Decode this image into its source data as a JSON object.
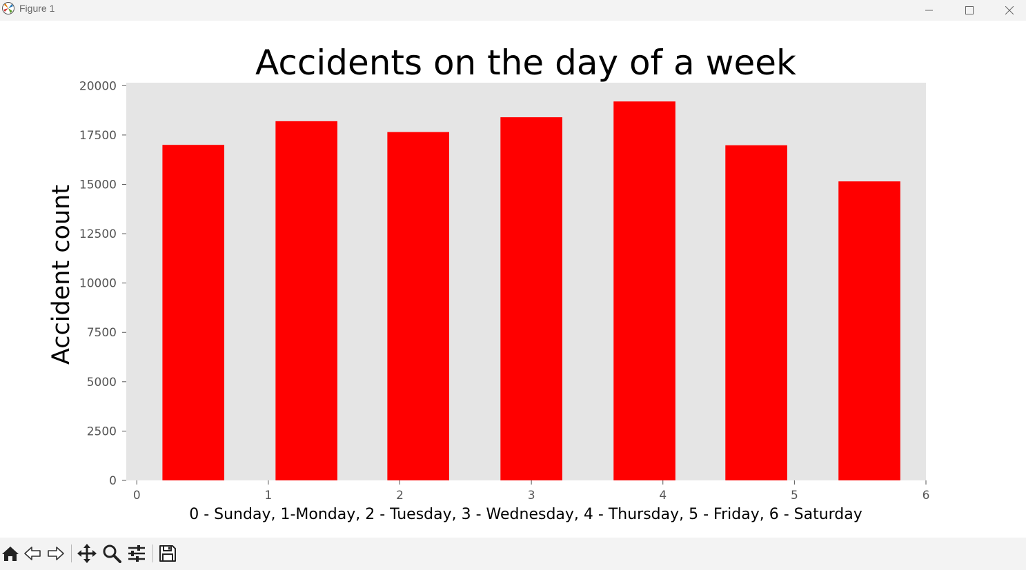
{
  "window": {
    "title": "Figure 1",
    "controls": {
      "minimize": "minimize-icon",
      "maximize": "maximize-icon",
      "close": "close-icon"
    }
  },
  "colors": {
    "bar": "#ff0000",
    "plot_background": "#e5e5e5",
    "window_bar": "#f3f3f3"
  },
  "chart_data": {
    "type": "bar",
    "title": "Accidents on the day of a week",
    "xlabel": "0 - Sunday, 1-Monday, 2 - Tuesday, 3 - Wednesday, 4 - Thursday, 5 - Friday, 6 - Saturday",
    "ylabel": "Accident count",
    "x": [
      0.43,
      1.29,
      2.14,
      3.0,
      3.86,
      4.71,
      5.57
    ],
    "values": [
      17000,
      18200,
      17650,
      18400,
      19200,
      16980,
      15150
    ],
    "bar_width_data": 0.47,
    "xlim": [
      -0.08,
      6.0
    ],
    "ylim": [
      0,
      20150
    ],
    "xticks": [
      0,
      1,
      2,
      3,
      4,
      5,
      6
    ],
    "yticks": [
      0,
      2500,
      5000,
      7500,
      10000,
      12500,
      15000,
      17500,
      20000
    ],
    "grid": false,
    "legend": "none"
  },
  "toolbar": {
    "items": [
      {
        "name": "home-icon",
        "label": "Home"
      },
      {
        "name": "back-icon",
        "label": "Back"
      },
      {
        "name": "forward-icon",
        "label": "Forward"
      },
      {
        "name": "pan-icon",
        "label": "Pan"
      },
      {
        "name": "zoom-icon",
        "label": "Zoom"
      },
      {
        "name": "configure-subplots-icon",
        "label": "Configure subplots"
      },
      {
        "name": "save-icon",
        "label": "Save"
      }
    ]
  }
}
